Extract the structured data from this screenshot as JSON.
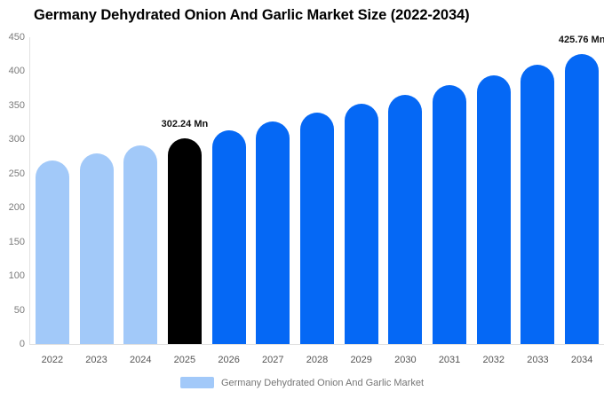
{
  "chart_data": {
    "type": "bar",
    "title": "Germany Dehydrated Onion And Garlic Market Size (2022-2034)",
    "categories": [
      "2022",
      "2023",
      "2024",
      "2025",
      "2026",
      "2027",
      "2028",
      "2029",
      "2030",
      "2031",
      "2032",
      "2033",
      "2034"
    ],
    "values": [
      269.62,
      280.08,
      290.95,
      302.24,
      313.97,
      326.15,
      338.81,
      351.96,
      365.61,
      379.8,
      394.54,
      409.85,
      425.76
    ],
    "unit": "Mn",
    "xlabel": "",
    "ylabel": "",
    "ylim": [
      0,
      450
    ],
    "yticks": [
      0,
      50,
      100,
      150,
      200,
      250,
      300,
      350,
      400,
      450
    ],
    "grid": false,
    "legend_position": "bottom",
    "bar_colors": [
      "#a2c9f9",
      "#a2c9f9",
      "#a2c9f9",
      "#000000",
      "#0568f5",
      "#0568f5",
      "#0568f5",
      "#0568f5",
      "#0568f5",
      "#0568f5",
      "#0568f5",
      "#0568f5",
      "#0568f5"
    ],
    "annotations": [
      {
        "category": "2025",
        "text": "302.24 Mn"
      },
      {
        "category": "2034",
        "text": "425.76 Mn"
      }
    ]
  },
  "legend": {
    "label": "Germany Dehydrated Onion And Garlic Market",
    "swatch_color": "#a2c9f9"
  },
  "colors": {
    "historical_bar": "#a2c9f9",
    "base_year_bar": "#000000",
    "forecast_bar": "#0568f5",
    "axis_line": "#e0e0e0",
    "y_tick_text": "#7b7b7b",
    "x_tick_text": "#555555",
    "annotation_text": "#111111",
    "legend_text": "#757575"
  }
}
